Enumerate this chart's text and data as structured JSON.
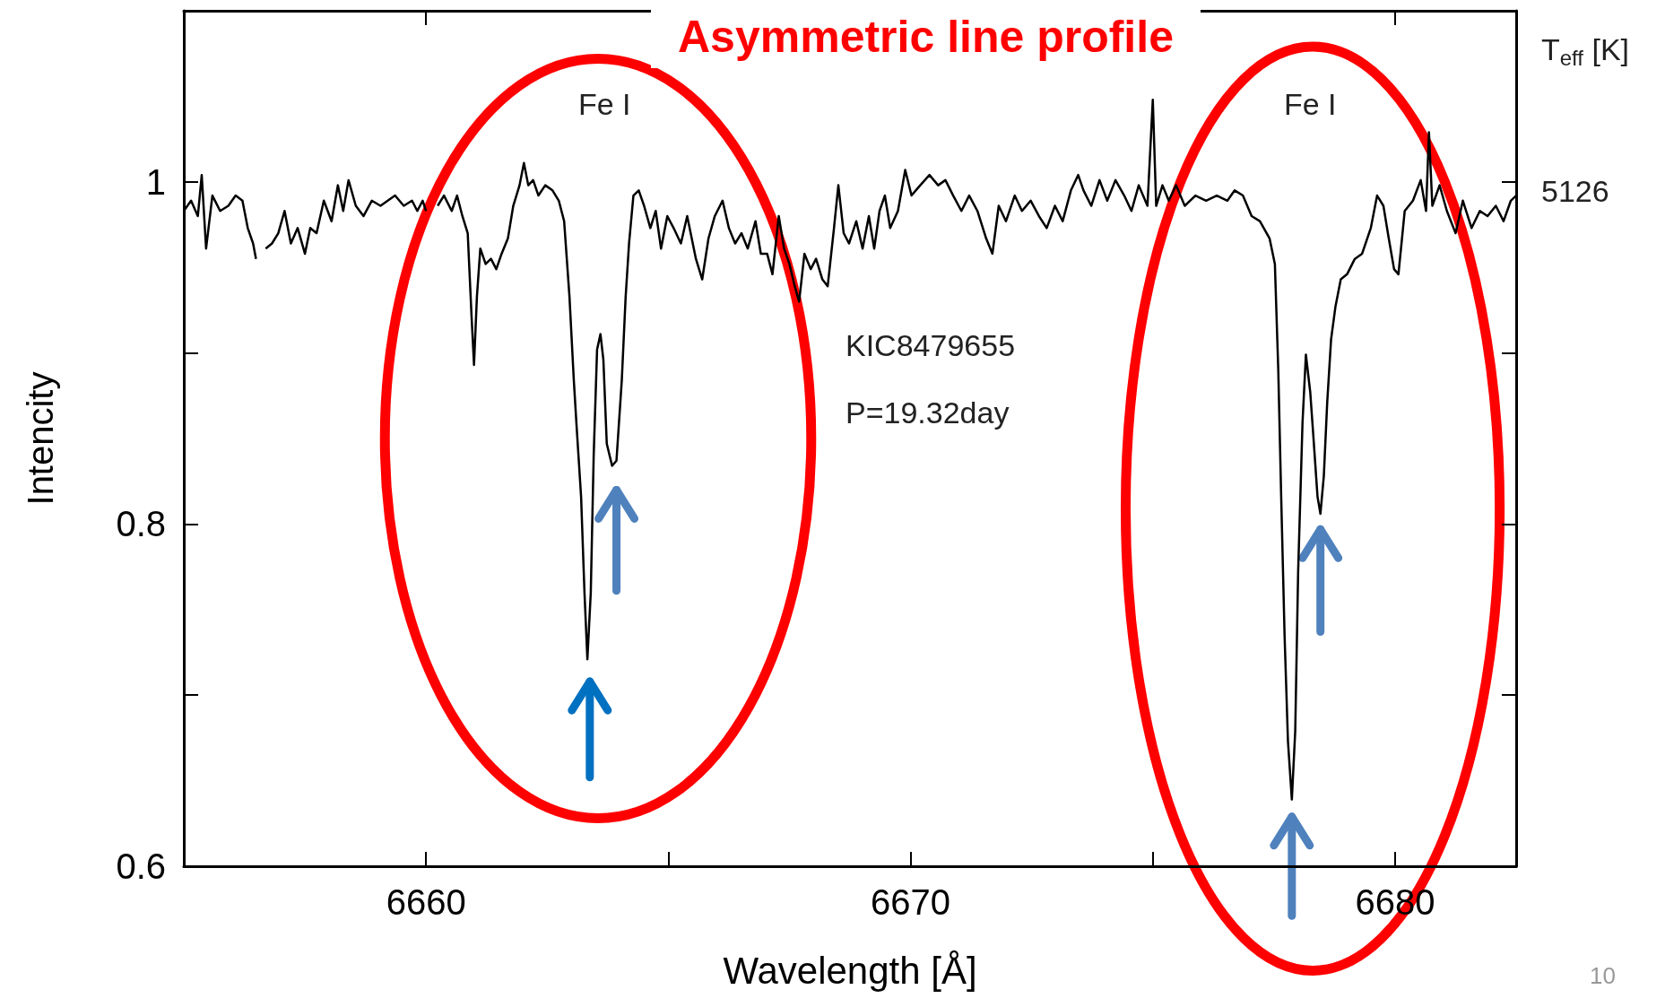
{
  "chart_data": {
    "type": "line",
    "title": "Asymmetric line profile",
    "xlabel": "Wavelength [Å]",
    "ylabel": "Intencity",
    "xlim": [
      6655,
      6682.5
    ],
    "xticks": [
      6660,
      {
        "value": 6665,
        "label": null
      },
      6670,
      {
        "value": 6675,
        "label": null
      },
      6680
    ],
    "ylim": [
      0.6,
      1.1
    ],
    "yticks": [
      0.6,
      {
        "value": 0.7,
        "label": null
      },
      0.8,
      {
        "value": 0.9,
        "label": null
      },
      1
    ],
    "grid": false,
    "marker": "none",
    "annotations": [
      "Fe I",
      "Fe I",
      "KIC8479655",
      "P=19.32day",
      "T$_{eff}$ [K]",
      "5126",
      "10"
    ],
    "series": [
      {
        "color": "#000000",
        "x": [
          6655.0,
          6655.15,
          6655.29,
          6655.37,
          6655.46,
          6655.59,
          6655.75,
          6655.92,
          6656.07,
          6656.21,
          6656.32,
          6656.43,
          6656.49,
          6656.56,
          6656.62,
          6656.69,
          6656.82,
          6656.95,
          6657.08,
          6657.21,
          6657.35,
          6657.5,
          6657.61,
          6657.74,
          6657.89,
          6658.05,
          6658.18,
          6658.29,
          6658.4,
          6658.55,
          6658.71,
          6658.88,
          6659.06,
          6659.21,
          6659.36,
          6659.54,
          6659.71,
          6659.82,
          6659.93,
          6660.0,
          6660.09,
          6660.18,
          6660.24,
          6660.37,
          6660.53,
          6660.64,
          6660.75,
          6660.86,
          6660.94,
          6660.99,
          6661.05,
          6661.12,
          6661.23,
          6661.34,
          6661.45,
          6661.56,
          6661.69,
          6661.8,
          6661.93,
          6662.02,
          6662.11,
          6662.21,
          6662.32,
          6662.46,
          6662.61,
          6662.74,
          6662.85,
          6662.96,
          6663.05,
          6663.11,
          6663.2,
          6663.27,
          6663.33,
          6663.4,
          6663.46,
          6663.53,
          6663.6,
          6663.66,
          6663.73,
          6663.84,
          6663.93,
          6664.04,
          6664.12,
          6664.19,
          6664.28,
          6664.39,
          6664.5,
          6664.63,
          6664.74,
          6664.85,
          6664.98,
          6665.11,
          6665.26,
          6665.39,
          6665.57,
          6665.7,
          6665.83,
          6665.96,
          6666.12,
          6666.25,
          6666.38,
          6666.51,
          6666.64,
          6666.8,
          6666.91,
          6667.04,
          6667.15,
          6667.28,
          6667.39,
          6667.5,
          6667.61,
          6667.7,
          6667.81,
          6667.94,
          6668.05,
          6668.18,
          6668.29,
          6668.42,
          6668.51,
          6668.62,
          6668.73,
          6668.88,
          6669.01,
          6669.14,
          6669.25,
          6669.36,
          6669.47,
          6669.58,
          6669.74,
          6669.89,
          6670.02,
          6670.2,
          6670.39,
          6670.57,
          6670.72,
          6670.88,
          6671.05,
          6671.21,
          6671.38,
          6671.56,
          6671.69,
          6671.82,
          6671.97,
          6672.15,
          6672.3,
          6672.48,
          6672.65,
          6672.81,
          6672.98,
          6673.14,
          6673.31,
          6673.46,
          6673.57,
          6673.73,
          6673.9,
          6674.06,
          6674.23,
          6674.41,
          6674.56,
          6674.71,
          6674.89,
          6675.0,
          6675.07,
          6675.2,
          6675.33,
          6675.48,
          6675.66,
          6675.88,
          6676.1,
          6676.32,
          6676.54,
          6676.69,
          6676.86,
          6677.04,
          6677.21,
          6677.41,
          6677.52,
          6677.59,
          6677.65,
          6677.72,
          6677.79,
          6677.87,
          6677.94,
          6678.0,
          6678.09,
          6678.16,
          6678.25,
          6678.31,
          6678.4,
          6678.46,
          6678.53,
          6678.6,
          6678.68,
          6678.77,
          6678.88,
          6679.01,
          6679.17,
          6679.32,
          6679.5,
          6679.63,
          6679.76,
          6679.87,
          6679.98,
          6680.07,
          6680.2,
          6680.37,
          6680.53,
          6680.64,
          6680.7,
          6680.77,
          6680.92,
          6681.07,
          6681.25,
          6681.4,
          6681.58,
          6681.75,
          6681.91,
          6682.08,
          6682.24,
          6682.39,
          6682.5
        ],
        "values": [
          0.983,
          0.989,
          0.98,
          1.004,
          0.961,
          0.992,
          0.983,
          0.986,
          0.992,
          0.989,
          0.973,
          0.964,
          0.955,
          null,
          null,
          0.961,
          0.964,
          0.97,
          0.983,
          0.964,
          0.973,
          0.958,
          0.973,
          0.97,
          0.989,
          0.977,
          0.998,
          0.983,
          1.001,
          0.986,
          0.98,
          0.989,
          0.986,
          0.989,
          0.992,
          0.986,
          0.989,
          0.983,
          0.989,
          0.983,
          null,
          null,
          0.986,
          0.992,
          0.983,
          0.992,
          0.98,
          0.97,
          0.921,
          0.893,
          0.933,
          0.961,
          0.952,
          0.955,
          0.949,
          0.958,
          0.967,
          0.986,
          0.998,
          1.011,
          0.998,
          1.001,
          0.992,
          0.998,
          0.995,
          0.989,
          0.977,
          0.933,
          0.884,
          0.856,
          0.816,
          0.76,
          0.721,
          0.76,
          0.84,
          0.902,
          0.911,
          0.896,
          0.847,
          0.834,
          0.837,
          0.884,
          0.933,
          0.964,
          0.992,
          0.995,
          0.986,
          0.973,
          0.983,
          0.961,
          0.98,
          0.973,
          0.964,
          0.98,
          0.955,
          0.943,
          0.967,
          0.98,
          0.989,
          0.973,
          0.964,
          0.97,
          0.961,
          0.977,
          0.958,
          0.958,
          0.946,
          0.98,
          0.961,
          0.952,
          0.939,
          0.93,
          0.958,
          0.949,
          0.955,
          0.943,
          0.939,
          0.973,
          0.998,
          0.97,
          0.964,
          0.977,
          0.961,
          0.98,
          0.961,
          0.983,
          0.992,
          0.973,
          0.983,
          1.007,
          0.992,
          0.998,
          1.004,
          0.998,
          1.001,
          0.992,
          0.983,
          0.992,
          0.983,
          0.967,
          0.958,
          0.986,
          0.977,
          0.992,
          0.983,
          0.989,
          0.98,
          0.973,
          0.986,
          0.977,
          0.995,
          1.004,
          0.995,
          0.986,
          1.001,
          0.989,
          1.001,
          0.992,
          0.983,
          0.998,
          0.986,
          1.048,
          0.986,
          0.998,
          0.989,
          0.998,
          0.986,
          0.992,
          0.989,
          0.992,
          0.989,
          0.995,
          0.992,
          0.98,
          0.977,
          0.967,
          0.952,
          0.89,
          0.816,
          0.735,
          0.673,
          0.639,
          0.679,
          0.772,
          0.859,
          0.899,
          0.877,
          0.853,
          0.816,
          0.806,
          0.828,
          0.871,
          0.908,
          0.927,
          0.943,
          0.946,
          0.955,
          0.958,
          0.973,
          0.992,
          0.986,
          0.967,
          0.949,
          0.946,
          0.983,
          0.989,
          1.001,
          0.983,
          1.029,
          0.986,
          0.998,
          0.983,
          0.97,
          0.989,
          0.973,
          0.983,
          0.98,
          0.986,
          0.977,
          0.989,
          0.992
        ]
      }
    ]
  }
}
